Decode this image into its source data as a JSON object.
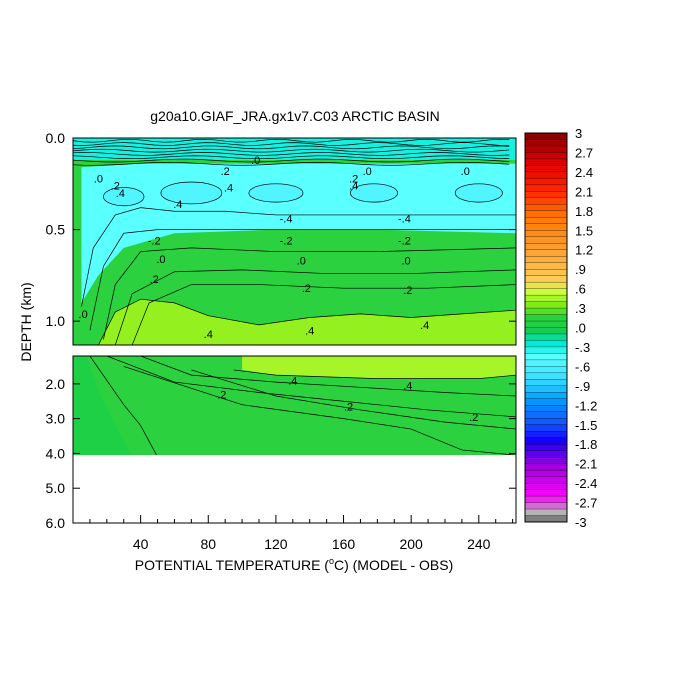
{
  "chart_data": {
    "type": "heatmap",
    "title": "g20a10.GIAF_JRA.gx1v7.C03 ARCTIC BASIN",
    "xlabel": "POTENTIAL TEMPERATURE (",
    "xlabel_unit": "o",
    "xlabel_suffix": "C) (MODEL - OBS)",
    "ylabel": "DEPTH (km)",
    "xlim": [
      0,
      262
    ],
    "x_ticks": [
      40,
      80,
      120,
      160,
      200,
      240
    ],
    "upper_panel": {
      "ylim": [
        0.0,
        1.13
      ],
      "y_ticks": [
        0.0,
        0.5,
        1.0
      ],
      "y_tick_labels": [
        "0.0",
        "0.5",
        "1.0"
      ]
    },
    "lower_panel": {
      "ylim": [
        1.2,
        6.0
      ],
      "y_ticks": [
        2.0,
        3.0,
        4.0,
        5.0,
        6.0
      ],
      "y_tick_labels": [
        "2.0",
        "3.0",
        "4.0",
        "5.0",
        "6.0"
      ],
      "data_bottom": 4.1
    },
    "colorbar": {
      "min": -3.0,
      "max": 3.0,
      "step": 0.1,
      "labels": [
        "3",
        "2.7",
        "2.4",
        "2.1",
        "1.8",
        "1.5",
        "1.2",
        ".9",
        ".6",
        ".3",
        ".0",
        "-.3",
        "-.6",
        "-.9",
        "-1.2",
        "-1.5",
        "-1.8",
        "-2.1",
        "-2.4",
        "-2.7",
        "-3"
      ]
    },
    "contour_labels": [
      {
        "text": ".0",
        "x": 15,
        "y": 0.22
      },
      {
        "text": ".2",
        "x": 25,
        "y": 0.26
      },
      {
        "text": ".4",
        "x": 28,
        "y": 0.3
      },
      {
        "text": ".2",
        "x": 90,
        "y": 0.18
      },
      {
        "text": ".4",
        "x": 92,
        "y": 0.27
      },
      {
        "text": ".0",
        "x": 108,
        "y": 0.12
      },
      {
        "text": ".2",
        "x": 166,
        "y": 0.22
      },
      {
        "text": ".4",
        "x": 166,
        "y": 0.26
      },
      {
        "text": ".0",
        "x": 174,
        "y": 0.18
      },
      {
        "text": ".0",
        "x": 232,
        "y": 0.18
      },
      {
        "text": ".4",
        "x": 62,
        "y": 0.36
      },
      {
        "text": "-.4",
        "x": 126,
        "y": 0.44
      },
      {
        "text": "-.4",
        "x": 196,
        "y": 0.44
      },
      {
        "text": "-.2",
        "x": 48,
        "y": 0.56
      },
      {
        "text": "-.2",
        "x": 126,
        "y": 0.56
      },
      {
        "text": "-.2",
        "x": 196,
        "y": 0.56
      },
      {
        "text": ".0",
        "x": 52,
        "y": 0.66
      },
      {
        "text": ".0",
        "x": 135,
        "y": 0.67
      },
      {
        "text": ".0",
        "x": 197,
        "y": 0.67
      },
      {
        "text": ".2",
        "x": 48,
        "y": 0.77
      },
      {
        "text": ".2",
        "x": 138,
        "y": 0.82
      },
      {
        "text": ".2",
        "x": 198,
        "y": 0.83
      },
      {
        "text": ".0",
        "x": 6,
        "y": 0.96
      },
      {
        "text": ".4",
        "x": 80,
        "y": 1.07
      },
      {
        "text": ".4",
        "x": 140,
        "y": 1.05
      },
      {
        "text": ".4",
        "x": 208,
        "y": 1.02
      },
      {
        "text": ".4",
        "x": 130,
        "y": 1.9
      },
      {
        "text": ".4",
        "x": 198,
        "y": 2.05
      },
      {
        "text": ".2",
        "x": 88,
        "y": 2.3
      },
      {
        "text": ".2",
        "x": 163,
        "y": 2.65
      },
      {
        "text": ".2",
        "x": 237,
        "y": 2.95
      }
    ]
  }
}
